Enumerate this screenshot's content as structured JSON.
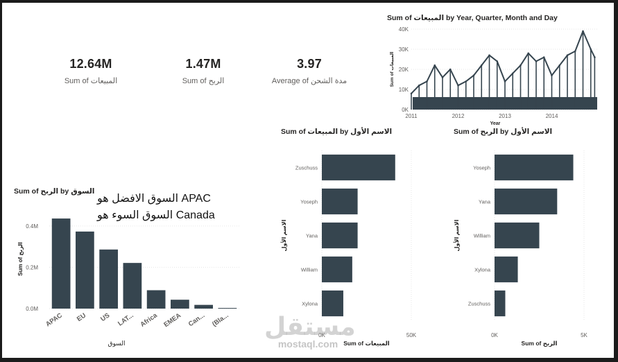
{
  "cards": [
    {
      "value": "12.64M",
      "label": "Sum of المبيعات"
    },
    {
      "value": "1.47M",
      "label": "Sum of الربح"
    },
    {
      "value": "3.97",
      "label": "Average of مدة الشحن"
    }
  ],
  "annotation": {
    "line1": "السوق الافضل هو APAC",
    "line2": "السوق السوء هو Canada"
  },
  "watermark": {
    "logo": "مستقل",
    "site": "mostaql.com"
  },
  "colors": {
    "bar": "#36454f",
    "grid": "#e6e6e6",
    "axis_text": "#605e5c"
  },
  "chart_data": [
    {
      "id": "time",
      "type": "line",
      "title": "Sum of المبيعات by Year, Quarter, Month and Day",
      "xlabel": "Year",
      "ylabel": "Sum of المبيعات",
      "x_ticks": [
        "2011",
        "2012",
        "2013",
        "2014"
      ],
      "y_ticks": [
        "0K",
        "10K",
        "20K",
        "30K",
        "40K"
      ],
      "ylim": [
        0,
        40000
      ],
      "series": [
        {
          "x": [
            "2011-01",
            "2011-03",
            "2011-05",
            "2011-07",
            "2011-09",
            "2011-11",
            "2012-01",
            "2012-03",
            "2012-05",
            "2012-07",
            "2012-09",
            "2012-11",
            "2013-01",
            "2013-03",
            "2013-05",
            "2013-07",
            "2013-09",
            "2013-11",
            "2014-01",
            "2014-03",
            "2014-05",
            "2014-07",
            "2014-09",
            "2014-11",
            "2014-12"
          ],
          "values": [
            8000,
            12000,
            14000,
            22000,
            16000,
            20000,
            12000,
            14000,
            17000,
            22000,
            27000,
            24000,
            14000,
            18000,
            22000,
            28000,
            24000,
            26000,
            17000,
            22000,
            27000,
            29000,
            39000,
            30000,
            26000
          ]
        }
      ]
    },
    {
      "id": "market",
      "type": "bar",
      "title": "Sum of الربح by السوق",
      "xlabel": "السوق",
      "ylabel": "Sum of الربح",
      "categories": [
        "APAC",
        "EU",
        "US",
        "LAT...",
        "Africa",
        "EMEA",
        "Can...",
        "(Bla..."
      ],
      "values": [
        436000,
        373000,
        286000,
        221000,
        89000,
        43000,
        18000,
        3000
      ],
      "y_ticks": [
        "0.0M",
        "0.2M",
        "0.4M"
      ],
      "ylim": [
        0,
        480000
      ]
    },
    {
      "id": "sales_by_name",
      "type": "bar",
      "orientation": "horizontal",
      "title": "Sum of المبيعات by الاسم الأول",
      "xlabel": "Sum of المبيعات",
      "ylabel": "الاسم الأول",
      "categories": [
        "Zuschuss",
        "Yoseph",
        "Yana",
        "William",
        "Xylona"
      ],
      "values": [
        41000,
        20000,
        20000,
        17000,
        12000
      ],
      "x_ticks": [
        "0K",
        "50K"
      ],
      "xlim": [
        0,
        50000
      ]
    },
    {
      "id": "profit_by_name",
      "type": "bar",
      "orientation": "horizontal",
      "title": "Sum of الربح by الاسم الأول",
      "xlabel": "Sum of الربح",
      "ylabel": "الاسم الأول",
      "categories": [
        "Yoseph",
        "Yana",
        "William",
        "Xylona",
        "Zuschuss"
      ],
      "values": [
        4400,
        3500,
        2500,
        1300,
        600
      ],
      "x_ticks": [
        "0K",
        "5K"
      ],
      "xlim": [
        0,
        5000
      ]
    }
  ]
}
